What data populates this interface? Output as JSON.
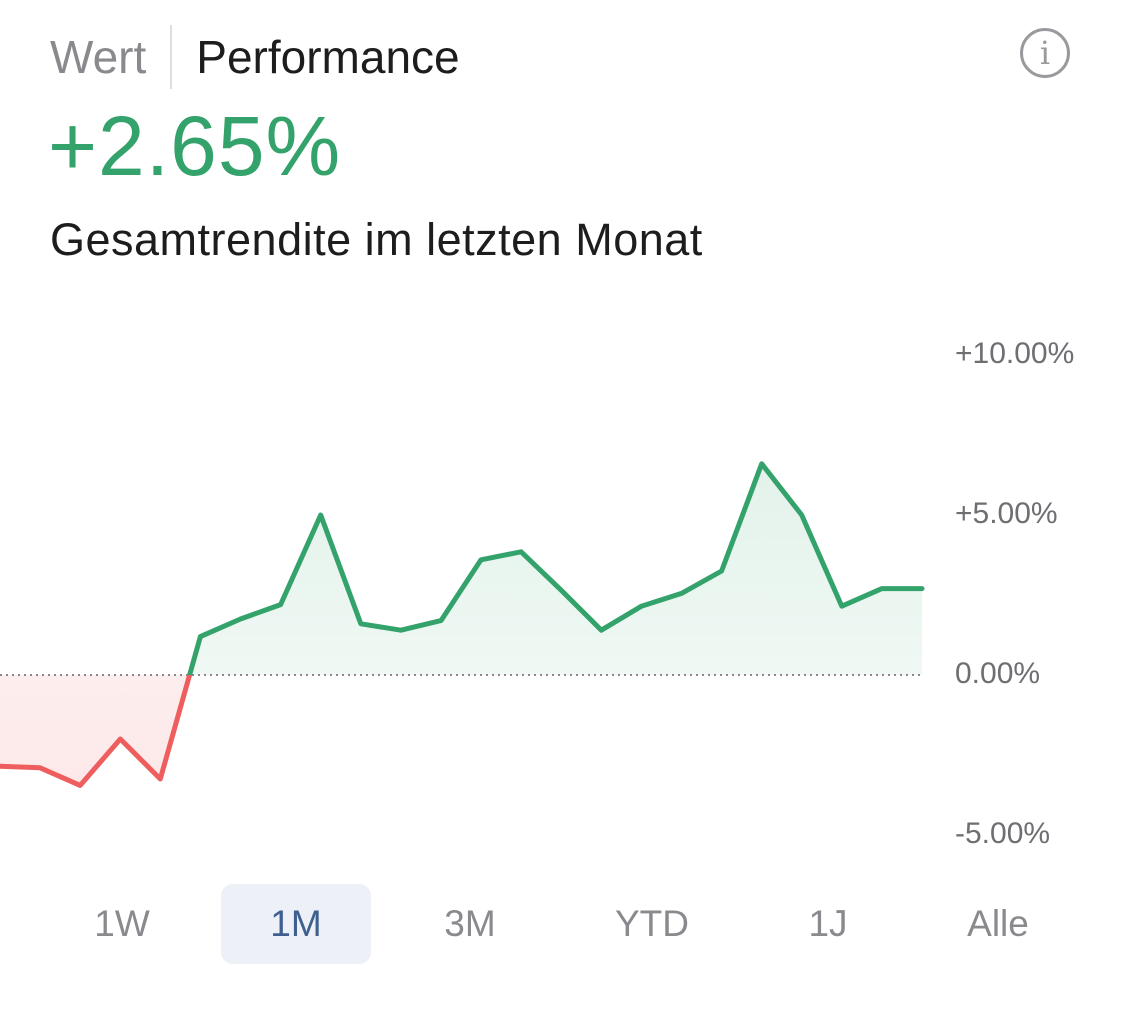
{
  "header": {
    "tabs": [
      {
        "label": "Wert",
        "active": false
      },
      {
        "label": "Performance",
        "active": true
      }
    ],
    "info_icon": "info-icon",
    "info_glyph": "i"
  },
  "summary": {
    "value": "+2.65%",
    "caption": "Gesamtrendite im letzten Monat"
  },
  "range_selector": {
    "options": [
      "1W",
      "1M",
      "3M",
      "YTD",
      "1J",
      "Alle"
    ],
    "selected": "1M"
  },
  "colors": {
    "positive": "#34a26b",
    "negative": "#ef5e5e",
    "selected_bg": "#edf0f6",
    "selected_text": "#3e5f8f"
  },
  "chart_data": {
    "type": "area",
    "ylim": [
      -5,
      10
    ],
    "ytick_labels": [
      "+10.00%",
      "+5.00%",
      "0.00%",
      "-5.00%"
    ],
    "ytick_values": [
      10,
      5,
      0,
      -5
    ],
    "baseline": 0,
    "x": [
      0,
      1,
      2,
      3,
      4,
      5,
      6,
      7,
      8,
      9,
      10,
      11,
      12,
      13,
      14,
      15,
      16,
      17,
      18,
      19,
      20,
      21,
      22,
      23
    ],
    "values": [
      -2.85,
      -2.9,
      -3.45,
      -2.0,
      -3.25,
      1.2,
      1.75,
      2.2,
      5.0,
      1.6,
      1.4,
      1.7,
      3.6,
      3.85,
      2.65,
      1.4,
      2.15,
      2.55,
      3.25,
      6.6,
      5.0,
      2.15,
      2.7,
      2.7
    ],
    "grid": false,
    "legend": "none"
  }
}
